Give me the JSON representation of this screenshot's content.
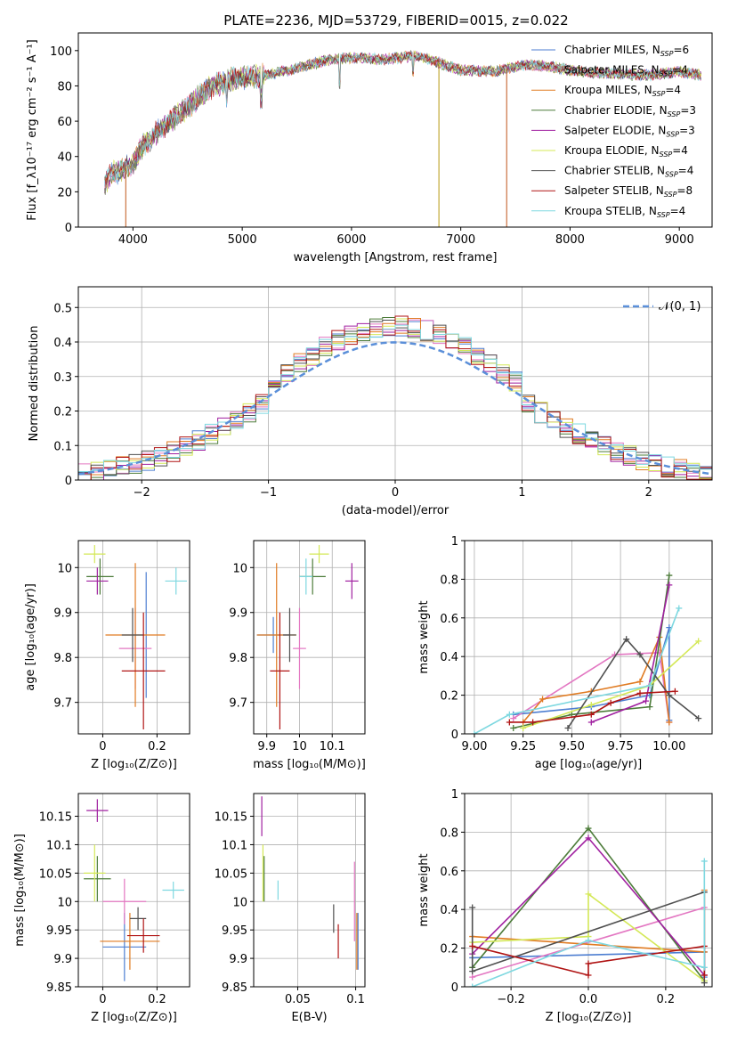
{
  "figure_title": "PLATE=2236, MJD=53729, FIBERID=0015, z=0.022",
  "colors": {
    "MILES": [
      "#4d7ed1",
      "#e377c2",
      "#e07b22"
    ],
    "ELODIE": [
      "#4d7c3a",
      "#a020a0",
      "#d4e857"
    ],
    "STELIB": [
      "#505050",
      "#b01414",
      "#7ed8e0"
    ],
    "normal": "#5b8fd9"
  },
  "chart_data": [
    {
      "id": "spectrum",
      "type": "line",
      "title": "PLATE=2236, MJD=53729, FIBERID=0015, z=0.022",
      "xlabel": "wavelength [Angstrom, rest frame]",
      "ylabel": "Flux [f_λ10⁻¹⁷ erg cm⁻² s⁻¹ A⁻¹]",
      "xlim": [
        3500,
        9300
      ],
      "ylim": [
        0,
        110
      ],
      "xticks": [
        4000,
        5000,
        6000,
        7000,
        8000,
        9000
      ],
      "yticks": [
        0,
        20,
        40,
        60,
        80,
        100
      ],
      "legend_position": "upper-right",
      "grid": false,
      "continuum_points": [
        [
          3740,
          24
        ],
        [
          3800,
          30
        ],
        [
          3900,
          32
        ],
        [
          4000,
          36
        ],
        [
          4100,
          47
        ],
        [
          4300,
          58
        ],
        [
          4500,
          68
        ],
        [
          4700,
          79
        ],
        [
          4900,
          84
        ],
        [
          5100,
          85
        ],
        [
          5300,
          87
        ],
        [
          5500,
          90
        ],
        [
          5800,
          95
        ],
        [
          6000,
          96
        ],
        [
          6300,
          95
        ],
        [
          6600,
          97
        ],
        [
          6800,
          93
        ],
        [
          7000,
          89
        ],
        [
          7300,
          88
        ],
        [
          7600,
          92
        ],
        [
          7800,
          91
        ],
        [
          8100,
          88
        ],
        [
          8400,
          87
        ],
        [
          8700,
          86
        ],
        [
          9000,
          88
        ],
        [
          9200,
          86
        ]
      ],
      "drops": [
        [
          3934,
          0
        ],
        [
          6800,
          0
        ],
        [
          7420,
          0
        ]
      ],
      "series": [
        {
          "name": "Chabrier MILES, N_SSP=6",
          "label_main": "Chabrier MILES, N",
          "label_sub": "SSP",
          "label_tail": "=6",
          "color_lib": "MILES",
          "color_idx": 0
        },
        {
          "name": "Salpeter MILES, N_SSP=4",
          "label_main": "Salpeter MILES, N",
          "label_sub": "SSP",
          "label_tail": "=4",
          "color_lib": "MILES",
          "color_idx": 1
        },
        {
          "name": "Kroupa MILES, N_SSP=4",
          "label_main": "Kroupa MILES, N",
          "label_sub": "SSP",
          "label_tail": "=4",
          "color_lib": "MILES",
          "color_idx": 2
        },
        {
          "name": "Chabrier ELODIE, N_SSP=3",
          "label_main": "Chabrier ELODIE, N",
          "label_sub": "SSP",
          "label_tail": "=3",
          "color_lib": "ELODIE",
          "color_idx": 0
        },
        {
          "name": "Salpeter ELODIE, N_SSP=3",
          "label_main": "Salpeter ELODIE, N",
          "label_sub": "SSP",
          "label_tail": "=3",
          "color_lib": "ELODIE",
          "color_idx": 1
        },
        {
          "name": "Kroupa ELODIE, N_SSP=4",
          "label_main": "Kroupa ELODIE, N",
          "label_sub": "SSP",
          "label_tail": "=4",
          "color_lib": "ELODIE",
          "color_idx": 2
        },
        {
          "name": "Chabrier STELIB, N_SSP=4",
          "label_main": "Chabrier STELIB, N",
          "label_sub": "SSP",
          "label_tail": "=4",
          "color_lib": "STELIB",
          "color_idx": 0
        },
        {
          "name": "Salpeter STELIB, N_SSP=8",
          "label_main": "Salpeter STELIB, N",
          "label_sub": "SSP",
          "label_tail": "=8",
          "color_lib": "STELIB",
          "color_idx": 1
        },
        {
          "name": "Kroupa STELIB, N_SSP=4",
          "label_main": "Kroupa STELIB, N",
          "label_sub": "SSP",
          "label_tail": "=4",
          "color_lib": "STELIB",
          "color_idx": 2
        }
      ]
    },
    {
      "id": "histogram",
      "type": "line",
      "xlabel": "(data-model)/error",
      "ylabel": "Normed distribution",
      "xlim": [
        -2.5,
        2.5
      ],
      "ylim": [
        0,
        0.56
      ],
      "xticks": [
        -2,
        -1,
        0,
        1,
        2
      ],
      "yticks": [
        0.0,
        0.1,
        0.2,
        0.3,
        0.4,
        0.5
      ],
      "grid": true,
      "legend": "𝒩(0, 1)",
      "legend_position": "upper-right",
      "bin_width": 0.1
    },
    {
      "id": "age_vs_Z",
      "type": "scatter",
      "xlabel": "Z [log₁₀(Z/Z⊙)]",
      "ylabel": "age  [log₁₀(age/yr)]",
      "xlim": [
        -0.09,
        0.32
      ],
      "ylim": [
        9.63,
        10.06
      ],
      "xticks": [
        0.0,
        0.2
      ],
      "yticks": [
        9.7,
        9.8,
        9.9,
        10.0
      ],
      "grid": true,
      "points": [
        {
          "lib": "MILES",
          "i": 0,
          "x": 0.16,
          "xe": 0.0,
          "y": 9.85,
          "ye": 0.14
        },
        {
          "lib": "MILES",
          "i": 1,
          "x": 0.12,
          "xe": 0.06,
          "y": 9.82,
          "ye": 0.09
        },
        {
          "lib": "MILES",
          "i": 2,
          "x": 0.12,
          "xe": 0.11,
          "y": 9.85,
          "ye": 0.16
        },
        {
          "lib": "ELODIE",
          "i": 0,
          "x": -0.01,
          "xe": 0.05,
          "y": 9.98,
          "ye": 0.04
        },
        {
          "lib": "ELODIE",
          "i": 1,
          "x": -0.02,
          "xe": 0.04,
          "y": 9.97,
          "ye": 0.03
        },
        {
          "lib": "ELODIE",
          "i": 2,
          "x": -0.03,
          "xe": 0.04,
          "y": 10.03,
          "ye": 0.02
        },
        {
          "lib": "STELIB",
          "i": 0,
          "x": 0.11,
          "xe": 0.04,
          "y": 9.85,
          "ye": 0.06
        },
        {
          "lib": "STELIB",
          "i": 1,
          "x": 0.15,
          "xe": 0.08,
          "y": 9.77,
          "ye": 0.13
        },
        {
          "lib": "STELIB",
          "i": 2,
          "x": 0.27,
          "xe": 0.04,
          "y": 9.97,
          "ye": 0.03
        }
      ]
    },
    {
      "id": "age_vs_mass",
      "type": "scatter",
      "xlabel": "mass [log₁₀(M/M⊙)]",
      "xlim": [
        9.86,
        10.2
      ],
      "ylim": [
        9.63,
        10.06
      ],
      "xticks": [
        9.9,
        10.0,
        10.1
      ],
      "yticks": [
        9.7,
        9.8,
        9.9,
        10.0
      ],
      "grid": true,
      "points": [
        {
          "lib": "MILES",
          "i": 0,
          "x": 9.92,
          "xe": 0.05,
          "y": 9.85,
          "ye": 0.04
        },
        {
          "lib": "MILES",
          "i": 1,
          "x": 10.0,
          "xe": 0.02,
          "y": 9.82,
          "ye": 0.09
        },
        {
          "lib": "MILES",
          "i": 2,
          "x": 9.93,
          "xe": 0.06,
          "y": 9.85,
          "ye": 0.16
        },
        {
          "lib": "ELODIE",
          "i": 0,
          "x": 10.04,
          "xe": 0.04,
          "y": 9.98,
          "ye": 0.04
        },
        {
          "lib": "ELODIE",
          "i": 1,
          "x": 10.16,
          "xe": 0.02,
          "y": 9.97,
          "ye": 0.04
        },
        {
          "lib": "ELODIE",
          "i": 2,
          "x": 10.06,
          "xe": 0.03,
          "y": 10.03,
          "ye": 0.02
        },
        {
          "lib": "STELIB",
          "i": 0,
          "x": 9.97,
          "xe": 0.02,
          "y": 9.85,
          "ye": 0.06
        },
        {
          "lib": "STELIB",
          "i": 1,
          "x": 9.94,
          "xe": 0.03,
          "y": 9.77,
          "ye": 0.13
        },
        {
          "lib": "STELIB",
          "i": 2,
          "x": 10.02,
          "xe": 0.02,
          "y": 9.98,
          "ye": 0.04
        }
      ]
    },
    {
      "id": "massweight_vs_age",
      "type": "line",
      "xlabel": "age  [log₁₀(age/yr)]",
      "ylabel": "mass weight",
      "xlim": [
        8.95,
        10.22
      ],
      "ylim": [
        0,
        1.0
      ],
      "xticks": [
        9.0,
        9.25,
        9.5,
        9.75,
        10.0
      ],
      "xtick_labels": [
        "9.00",
        "9.25",
        "9.50",
        "9.75",
        "10.00"
      ],
      "yticks": [
        0.0,
        0.2,
        0.4,
        0.6,
        0.8,
        1.0
      ],
      "grid": true,
      "series": [
        {
          "lib": "MILES",
          "i": 0,
          "points": [
            [
              9.2,
              0.1
            ],
            [
              9.6,
              0.14
            ],
            [
              9.9,
              0.2
            ],
            [
              10.0,
              0.55
            ],
            [
              10.0,
              0.07
            ]
          ]
        },
        {
          "lib": "MILES",
          "i": 1,
          "points": [
            [
              9.2,
              0.08
            ],
            [
              9.72,
              0.41
            ],
            [
              9.95,
              0.42
            ],
            [
              10.0,
              0.06
            ]
          ]
        },
        {
          "lib": "MILES",
          "i": 2,
          "points": [
            [
              9.25,
              0.06
            ],
            [
              9.35,
              0.18
            ],
            [
              9.6,
              0.22
            ],
            [
              9.85,
              0.27
            ],
            [
              9.95,
              0.5
            ],
            [
              10.0,
              0.06
            ]
          ]
        },
        {
          "lib": "ELODIE",
          "i": 0,
          "points": [
            [
              9.2,
              0.03
            ],
            [
              9.5,
              0.1
            ],
            [
              9.9,
              0.14
            ],
            [
              10.0,
              0.82
            ]
          ]
        },
        {
          "lib": "ELODIE",
          "i": 1,
          "points": [
            [
              9.6,
              0.06
            ],
            [
              9.88,
              0.17
            ],
            [
              10.0,
              0.77
            ]
          ]
        },
        {
          "lib": "ELODIE",
          "i": 2,
          "points": [
            [
              9.25,
              0.03
            ],
            [
              9.6,
              0.15
            ],
            [
              9.9,
              0.25
            ],
            [
              10.15,
              0.48
            ]
          ]
        },
        {
          "lib": "STELIB",
          "i": 0,
          "points": [
            [
              9.48,
              0.03
            ],
            [
              9.78,
              0.49
            ],
            [
              9.85,
              0.41
            ],
            [
              10.0,
              0.2
            ],
            [
              10.15,
              0.08
            ]
          ]
        },
        {
          "lib": "STELIB",
          "i": 1,
          "points": [
            [
              9.18,
              0.06
            ],
            [
              9.3,
              0.06
            ],
            [
              9.6,
              0.1
            ],
            [
              9.7,
              0.16
            ],
            [
              9.85,
              0.21
            ],
            [
              10.03,
              0.22
            ]
          ]
        },
        {
          "lib": "STELIB",
          "i": 2,
          "points": [
            [
              9.0,
              0.0
            ],
            [
              9.18,
              0.1
            ],
            [
              9.9,
              0.25
            ],
            [
              10.05,
              0.65
            ]
          ]
        }
      ]
    },
    {
      "id": "mass_vs_Z",
      "type": "scatter",
      "xlabel": "Z [log₁₀(Z/Z⊙)]",
      "ylabel": "mass [log₁₀(M/M⊙)]",
      "xlim": [
        -0.09,
        0.32
      ],
      "ylim": [
        9.85,
        10.19
      ],
      "xticks": [
        0.0,
        0.2
      ],
      "yticks": [
        9.85,
        9.9,
        9.95,
        10.0,
        10.05,
        10.1,
        10.15
      ],
      "grid": true,
      "points": [
        {
          "lib": "MILES",
          "i": 0,
          "x": 0.08,
          "xe": 0.08,
          "y": 9.92,
          "ye": 0.06
        },
        {
          "lib": "MILES",
          "i": 1,
          "x": 0.08,
          "xe": 0.08,
          "y": 10.0,
          "ye": 0.04
        },
        {
          "lib": "MILES",
          "i": 2,
          "x": 0.1,
          "xe": 0.11,
          "y": 9.93,
          "ye": 0.05
        },
        {
          "lib": "ELODIE",
          "i": 0,
          "x": -0.02,
          "xe": 0.05,
          "y": 10.04,
          "ye": 0.04
        },
        {
          "lib": "ELODIE",
          "i": 1,
          "x": -0.02,
          "xe": 0.04,
          "y": 10.16,
          "ye": 0.02
        },
        {
          "lib": "ELODIE",
          "i": 2,
          "x": -0.03,
          "xe": 0.04,
          "y": 10.05,
          "ye": 0.05
        },
        {
          "lib": "STELIB",
          "i": 0,
          "x": 0.13,
          "xe": 0.03,
          "y": 9.97,
          "ye": 0.02
        },
        {
          "lib": "STELIB",
          "i": 1,
          "x": 0.15,
          "xe": 0.06,
          "y": 9.94,
          "ye": 0.03
        },
        {
          "lib": "STELIB",
          "i": 2,
          "x": 0.26,
          "xe": 0.04,
          "y": 10.02,
          "ye": 0.015
        }
      ]
    },
    {
      "id": "mass_vs_ebv",
      "type": "scatter",
      "xlabel": "E(B-V)",
      "xlim": [
        0.012,
        0.108
      ],
      "ylim": [
        9.85,
        10.19
      ],
      "xticks": [
        0.05,
        0.1
      ],
      "yticks": [
        9.85,
        9.9,
        9.95,
        10.0,
        10.05,
        10.1,
        10.15
      ],
      "grid": true,
      "points": [
        {
          "lib": "MILES",
          "i": 0,
          "x": 0.102,
          "y": 9.93,
          "ye": 0.05
        },
        {
          "lib": "MILES",
          "i": 1,
          "x": 0.099,
          "y": 10.0,
          "ye": 0.07
        },
        {
          "lib": "MILES",
          "i": 2,
          "x": 0.101,
          "y": 9.93,
          "ye": 0.05
        },
        {
          "lib": "ELODIE",
          "i": 0,
          "x": 0.021,
          "y": 10.04,
          "ye": 0.04
        },
        {
          "lib": "ELODIE",
          "i": 1,
          "x": 0.019,
          "y": 10.15,
          "ye": 0.035
        },
        {
          "lib": "ELODIE",
          "i": 2,
          "x": 0.02,
          "y": 10.05,
          "ye": 0.05
        },
        {
          "lib": "STELIB",
          "i": 0,
          "x": 0.081,
          "y": 9.97,
          "ye": 0.025
        },
        {
          "lib": "STELIB",
          "i": 1,
          "x": 0.085,
          "y": 9.93,
          "ye": 0.03
        },
        {
          "lib": "STELIB",
          "i": 2,
          "x": 0.033,
          "y": 10.02,
          "ye": 0.017
        }
      ]
    },
    {
      "id": "massweight_vs_Z",
      "type": "line",
      "xlabel": "Z [log₁₀(Z/Z⊙)]",
      "ylabel": "mass weight",
      "xlim": [
        -0.32,
        0.32
      ],
      "ylim": [
        0,
        1.0
      ],
      "xticks": [
        -0.2,
        0.0,
        0.2
      ],
      "xtick_labels": [
        "−0.2",
        "0.0",
        "0.2"
      ],
      "yticks": [
        0.0,
        0.2,
        0.4,
        0.6,
        0.8,
        1.0
      ],
      "grid": true,
      "series": [
        {
          "lib": "MILES",
          "i": 0,
          "points": [
            [
              -0.3,
              0.15
            ],
            [
              0.3,
              0.18
            ],
            [
              0.3,
              0.05
            ]
          ]
        },
        {
          "lib": "MILES",
          "i": 1,
          "points": [
            [
              -0.3,
              0.05
            ],
            [
              0.3,
              0.41
            ],
            [
              0.3,
              0.06
            ]
          ]
        },
        {
          "lib": "MILES",
          "i": 2,
          "points": [
            [
              -0.3,
              0.26
            ],
            [
              0.3,
              0.18
            ],
            [
              0.3,
              0.5
            ]
          ]
        },
        {
          "lib": "ELODIE",
          "i": 0,
          "points": [
            [
              -0.3,
              0.1
            ],
            [
              0.0,
              0.82
            ],
            [
              0.3,
              0.03
            ]
          ]
        },
        {
          "lib": "ELODIE",
          "i": 1,
          "points": [
            [
              -0.3,
              0.17
            ],
            [
              0.0,
              0.77
            ],
            [
              0.3,
              0.06
            ]
          ]
        },
        {
          "lib": "ELODIE",
          "i": 2,
          "points": [
            [
              -0.3,
              0.23
            ],
            [
              0.0,
              0.26
            ],
            [
              0.0,
              0.48
            ],
            [
              0.3,
              0.03
            ]
          ]
        },
        {
          "lib": "STELIB",
          "i": 0,
          "points": [
            [
              -0.3,
              0.41
            ],
            [
              -0.3,
              0.08
            ],
            [
              0.3,
              0.49
            ],
            [
              0.3,
              0.02
            ]
          ]
        },
        {
          "lib": "STELIB",
          "i": 1,
          "points": [
            [
              -0.3,
              0.21
            ],
            [
              0.0,
              0.06
            ],
            [
              0.0,
              0.12
            ],
            [
              0.3,
              0.21
            ],
            [
              0.3,
              0.06
            ]
          ]
        },
        {
          "lib": "STELIB",
          "i": 2,
          "points": [
            [
              -0.3,
              0.0
            ],
            [
              0.0,
              0.24
            ],
            [
              0.3,
              0.1
            ],
            [
              0.3,
              0.65
            ]
          ]
        }
      ]
    }
  ]
}
